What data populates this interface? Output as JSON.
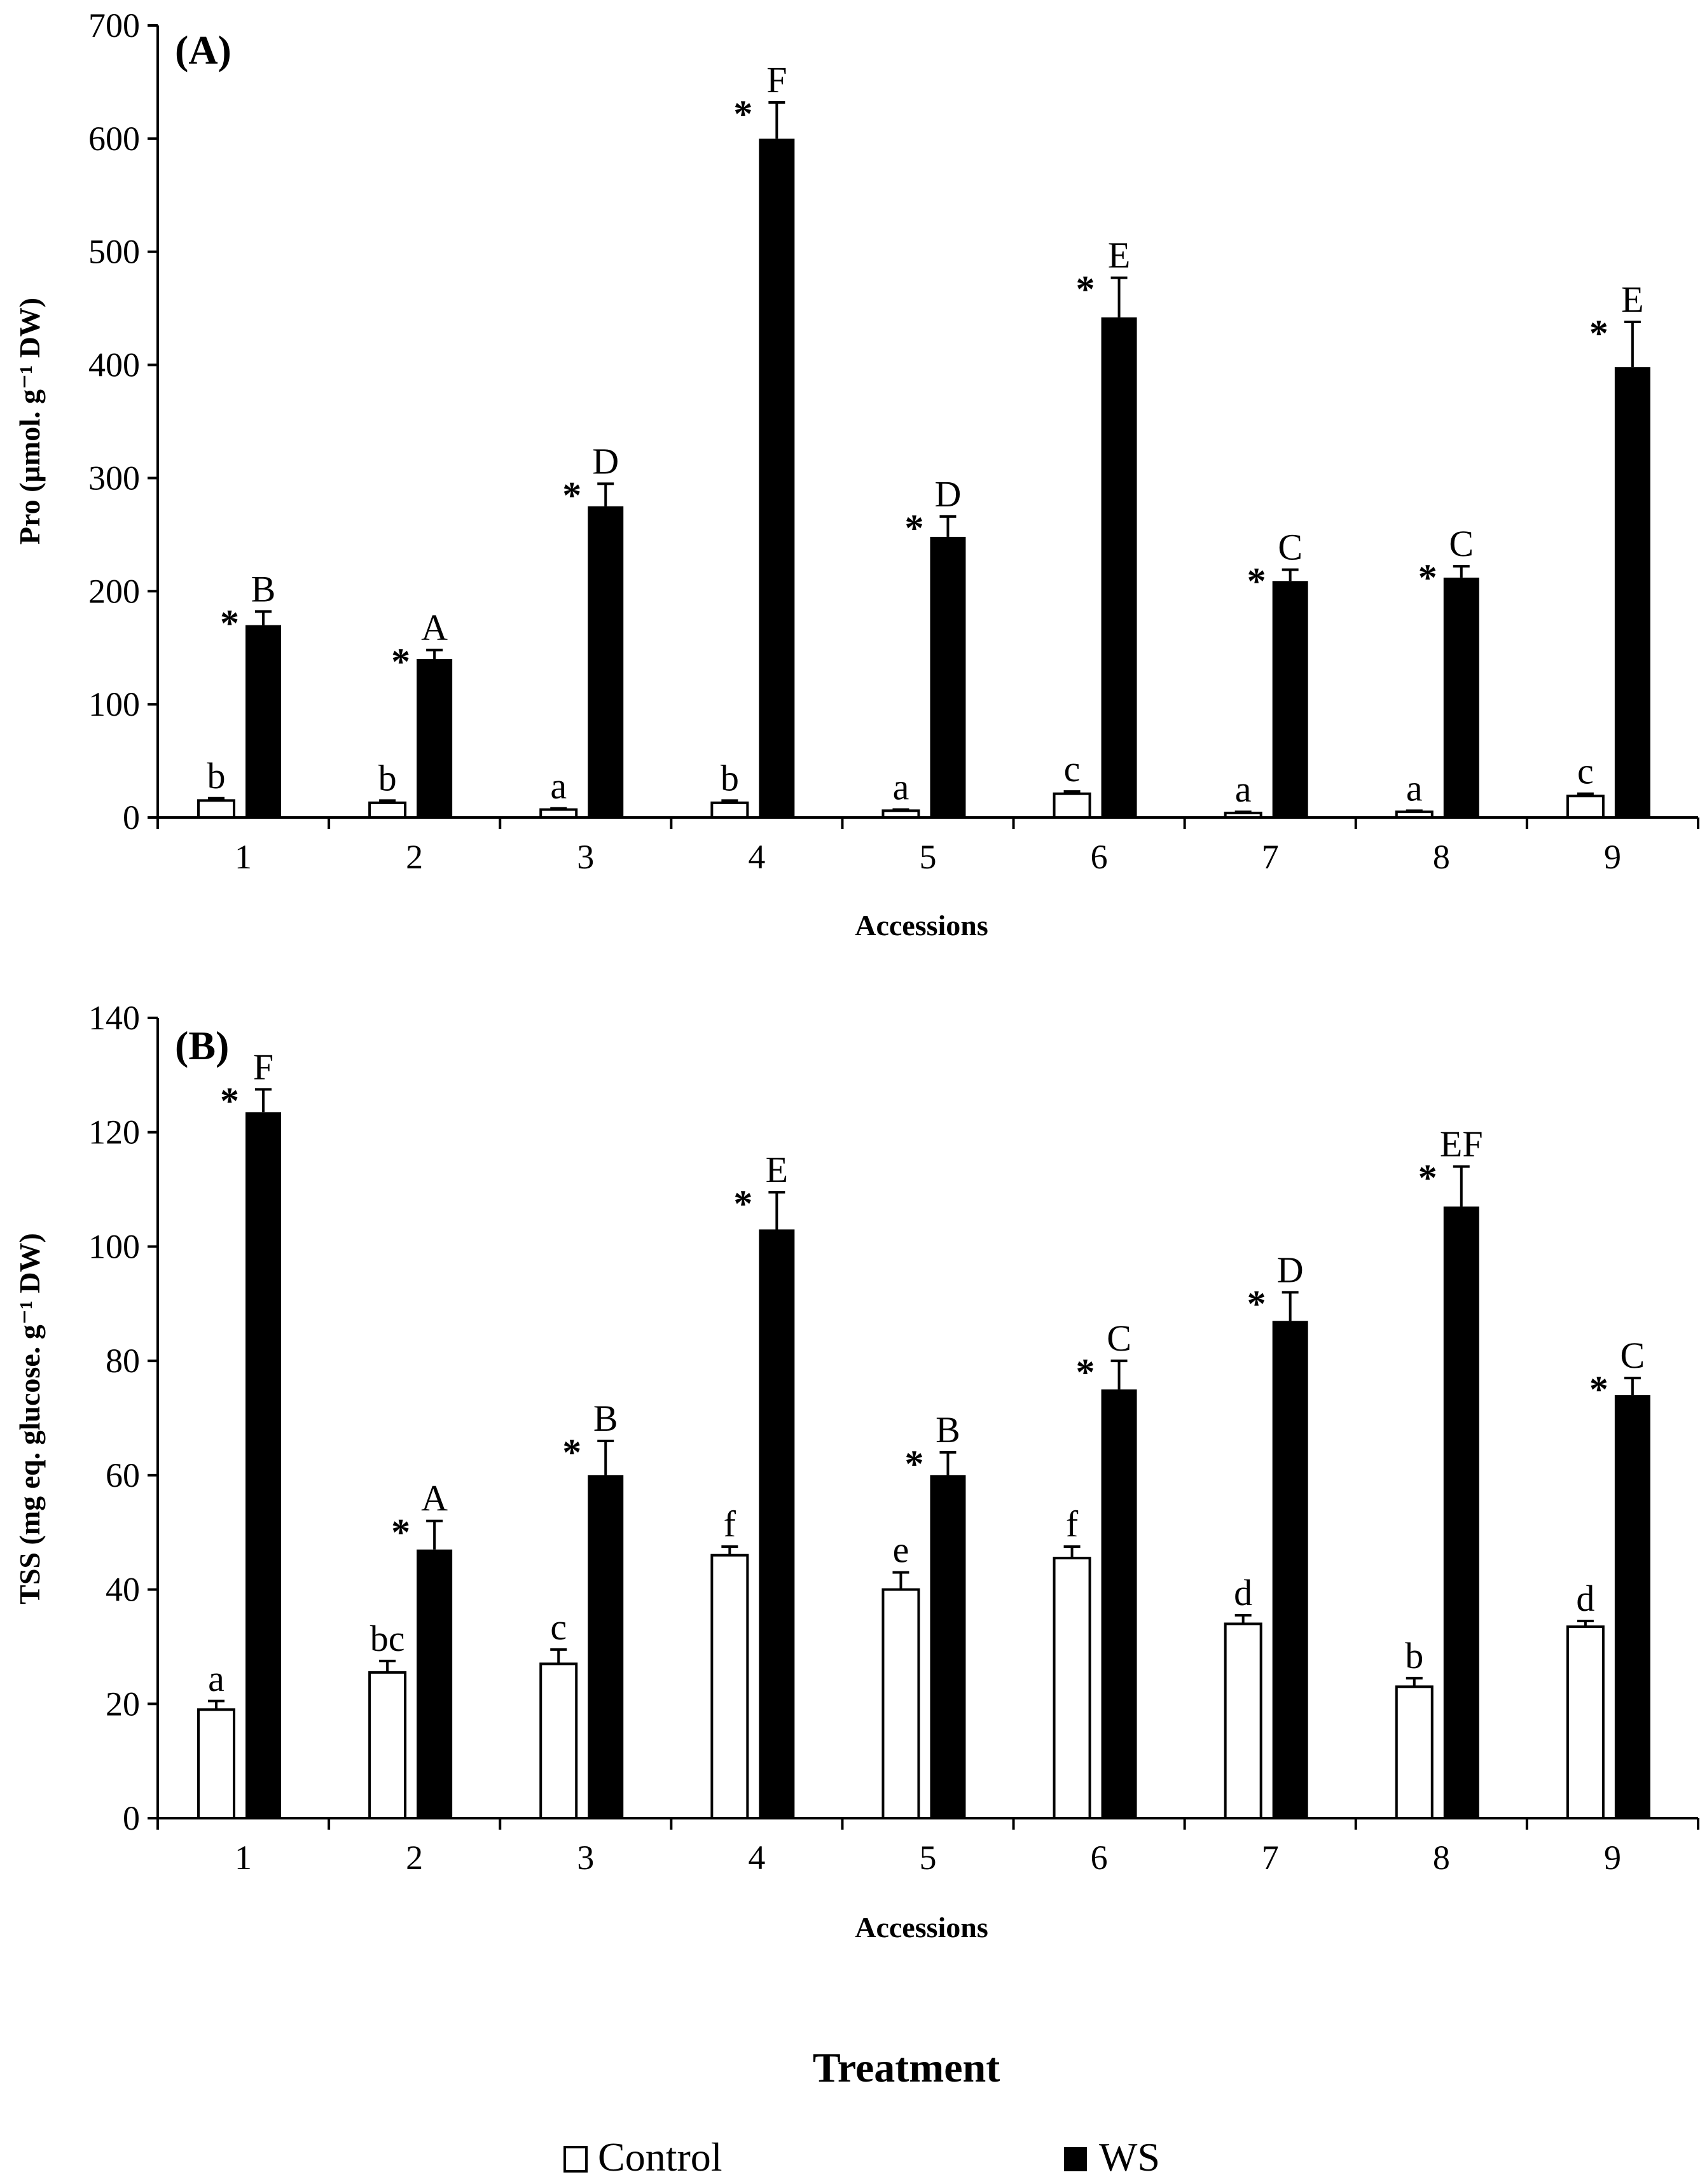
{
  "chart_data": [
    {
      "panel": "(A)",
      "type": "bar",
      "title": "",
      "xlabel": "Accessions",
      "ylabel": "Pro (µmol. g⁻¹ DW)",
      "ylim": [
        0,
        700
      ],
      "yticks": [
        0,
        100,
        200,
        300,
        400,
        500,
        600,
        700
      ],
      "categories": [
        "1",
        "2",
        "3",
        "4",
        "5",
        "6",
        "7",
        "8",
        "9"
      ],
      "series": [
        {
          "name": "Control",
          "color": "#ffffff",
          "values": [
            15,
            13,
            7,
            13,
            6,
            21,
            4,
            5,
            19
          ],
          "errors": [
            2,
            2,
            1,
            2,
            1,
            2,
            1,
            1,
            2
          ],
          "letters": [
            "b",
            "b",
            "a",
            "b",
            "a",
            "c",
            "a",
            "a",
            "c"
          ],
          "significant": [
            false,
            false,
            false,
            false,
            false,
            false,
            false,
            false,
            false
          ]
        },
        {
          "name": "WS",
          "color": "#000000",
          "values": [
            170,
            140,
            275,
            600,
            248,
            442,
            209,
            212,
            398
          ],
          "errors": [
            12,
            8,
            20,
            32,
            18,
            35,
            10,
            10,
            40
          ],
          "letters": [
            "B",
            "A",
            "D",
            "F",
            "D",
            "E",
            "C",
            "C",
            "E"
          ],
          "significant": [
            true,
            true,
            true,
            true,
            true,
            true,
            true,
            true,
            true
          ]
        }
      ],
      "significance_marker": "*"
    },
    {
      "panel": "(B)",
      "type": "bar",
      "title": "",
      "xlabel": "Accessions",
      "ylabel": "TSS (mg eq. glucose. g⁻¹ DW)",
      "ylim": [
        0,
        140
      ],
      "yticks": [
        0,
        20,
        40,
        60,
        80,
        100,
        120,
        140
      ],
      "categories": [
        "1",
        "2",
        "3",
        "4",
        "5",
        "6",
        "7",
        "8",
        "9"
      ],
      "series": [
        {
          "name": "Control",
          "color": "#ffffff",
          "values": [
            19,
            25.5,
            27,
            46,
            40,
            45.5,
            34,
            23,
            33.5
          ],
          "errors": [
            1.5,
            2,
            2.5,
            1.5,
            3,
            2,
            1.5,
            1.5,
            1
          ],
          "letters": [
            "a",
            "bc",
            "c",
            "f",
            "e",
            "f",
            "d",
            "b",
            "d"
          ],
          "significant": [
            false,
            false,
            false,
            false,
            false,
            false,
            false,
            false,
            false
          ]
        },
        {
          "name": "WS",
          "color": "#000000",
          "values": [
            123.5,
            47,
            60,
            103,
            60,
            75,
            87,
            107,
            74
          ],
          "errors": [
            4,
            5,
            6,
            6.5,
            4,
            5,
            5,
            7,
            3
          ],
          "letters": [
            "F",
            "A",
            "B",
            "E",
            "B",
            "C",
            "D",
            "EF",
            "C"
          ],
          "significant": [
            true,
            true,
            true,
            true,
            true,
            true,
            true,
            true,
            true
          ]
        }
      ],
      "significance_marker": "*"
    }
  ],
  "legend": {
    "title": "Treatment",
    "items": [
      {
        "label": "Control",
        "color": "#ffffff"
      },
      {
        "label": "WS",
        "color": "#000000"
      }
    ]
  }
}
